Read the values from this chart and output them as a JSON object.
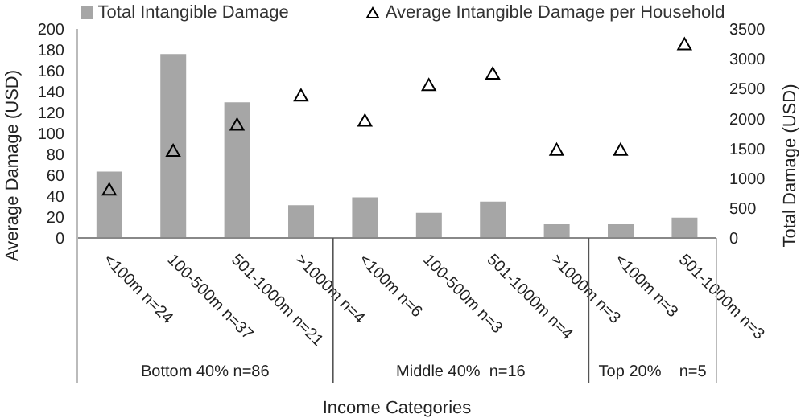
{
  "chart_data": {
    "type": "bar",
    "xlabel": "Income Categories",
    "ylabel": "Average Damage (USD)",
    "y2label": "Total Damage (USD)",
    "categories": [
      "<100m n=24",
      "100-500m n=37",
      "501-1000m n=21",
      ">1000m n=4",
      "<100m n=6",
      "100-500m n=3",
      "501-1000m n=4",
      ">1000m n=3",
      "<100m n=3",
      "501-1000m n=3"
    ],
    "series": [
      {
        "name": "Total Intangible Damage",
        "axis": "y2",
        "color": "#a6a6a6",
        "values": [
          1110,
          3080,
          2270,
          550,
          680,
          420,
          610,
          230,
          230,
          340
        ]
      },
      {
        "name": "Average Intangible Damage per Household",
        "type": "scatter",
        "marker": "triangle",
        "color": "#000000",
        "values": [
          46,
          83,
          108,
          136,
          112,
          146,
          157,
          84,
          84,
          185
        ]
      }
    ],
    "ylim": [
      0,
      200
    ],
    "yticks": [
      0,
      20,
      40,
      60,
      80,
      100,
      120,
      140,
      160,
      180,
      200
    ],
    "y2lim": [
      0,
      3500
    ],
    "y2ticks": [
      0,
      500,
      1000,
      1500,
      2000,
      2500,
      3000,
      3500
    ],
    "annotations": [
      "Bottom 40% n=86",
      "Middle 40%  n=16",
      "Top 20%    n=5"
    ],
    "legend": "top"
  }
}
